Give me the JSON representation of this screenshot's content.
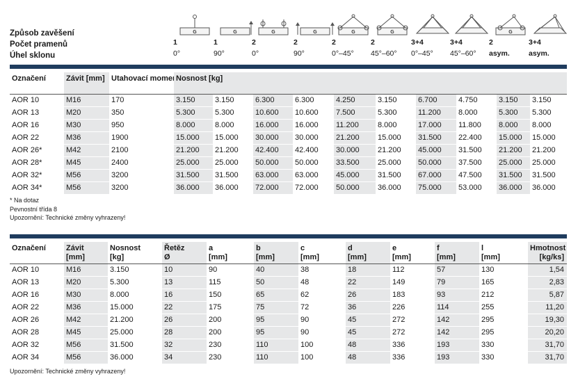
{
  "top_labels": [
    "Způsob zavěšení",
    "Počet pramenů",
    "Úhel sklonu"
  ],
  "config_columns": [
    {
      "icon": "one-hook-straight-icon",
      "count": "1",
      "angle": "0°"
    },
    {
      "icon": "one-hook-side-icon",
      "count": "1",
      "angle": "90°"
    },
    {
      "icon": "two-hooks-straight-icon",
      "count": "2",
      "angle": "0°"
    },
    {
      "icon": "two-hooks-side-icon",
      "count": "2",
      "angle": "90°"
    },
    {
      "icon": "two-legs-angled-icon",
      "count": "2",
      "angle": "0°–45°"
    },
    {
      "icon": "two-legs-wide-icon",
      "count": "2",
      "angle": "45°–60°"
    },
    {
      "icon": "four-legs-angled-icon",
      "count": "3+4",
      "angle": "0°–45°"
    },
    {
      "icon": "four-legs-wide-icon",
      "count": "3+4",
      "angle": "45°–60°"
    },
    {
      "icon": "two-legs-asym-icon",
      "count": "2",
      "angle": "asym."
    },
    {
      "icon": "four-legs-asym-icon",
      "count": "3+4",
      "angle": "asym."
    }
  ],
  "table1": {
    "headers": [
      "Označení",
      "Závit [mm]",
      "Utahovací moment [Nm]",
      "Nosnost [kg]"
    ],
    "rows": [
      [
        "AOR 10",
        "M16",
        "170",
        "3.150",
        "3.150",
        "6.300",
        "6.300",
        "4.250",
        "3.150",
        "6.700",
        "4.750",
        "3.150",
        "3.150"
      ],
      [
        "AOR 13",
        "M20",
        "350",
        "5.300",
        "5.300",
        "10.600",
        "10.600",
        "7.500",
        "5.300",
        "11.200",
        "8.000",
        "5.300",
        "5.300"
      ],
      [
        "AOR 16",
        "M30",
        "950",
        "8.000",
        "8.000",
        "16.000",
        "16.000",
        "11.200",
        "8.000",
        "17.000",
        "11.800",
        "8.000",
        "8.000"
      ],
      [
        "AOR 22",
        "M36",
        "1900",
        "15.000",
        "15.000",
        "30.000",
        "30.000",
        "21.200",
        "15.000",
        "31.500",
        "22.400",
        "15.000",
        "15.000"
      ],
      [
        "AOR 26*",
        "M42",
        "2100",
        "21.200",
        "21.200",
        "42.400",
        "42.400",
        "30.000",
        "21.200",
        "45.000",
        "31.500",
        "21.200",
        "21.200"
      ],
      [
        "AOR 28*",
        "M45",
        "2400",
        "25.000",
        "25.000",
        "50.000",
        "50.000",
        "33.500",
        "25.000",
        "50.000",
        "37.500",
        "25.000",
        "25.000"
      ],
      [
        "AOR 32*",
        "M56",
        "3200",
        "31.500",
        "31.500",
        "63.000",
        "63.000",
        "45.000",
        "31.500",
        "67.000",
        "47.500",
        "31.500",
        "31.500"
      ],
      [
        "AOR 34*",
        "M56",
        "3200",
        "36.000",
        "36.000",
        "72.000",
        "72.000",
        "50.000",
        "36.000",
        "75.000",
        "53.000",
        "36.000",
        "36.000"
      ]
    ]
  },
  "notes1": [
    "* Na dotaz",
    "Pevnostní třída 8",
    "Upozornění: Technické změny vyhrazeny!"
  ],
  "table2": {
    "headers": [
      "Označení",
      "Závit [mm]",
      "Nosnost [kg]",
      "Řetěz Ø",
      "a [mm]",
      "b [mm]",
      "c [mm]",
      "d [mm]",
      "e [mm]",
      "f [mm]",
      "l [mm]",
      "Hmotnost [kg/ks]"
    ],
    "rows": [
      [
        "AOR 10",
        "M16",
        "3.150",
        "10",
        "90",
        "40",
        "38",
        "18",
        "112",
        "57",
        "130",
        "1,54"
      ],
      [
        "AOR 13",
        "M20",
        "5.300",
        "13",
        "115",
        "50",
        "48",
        "22",
        "149",
        "79",
        "165",
        "2,83"
      ],
      [
        "AOR 16",
        "M30",
        "8.000",
        "16",
        "150",
        "65",
        "62",
        "26",
        "183",
        "93",
        "212",
        "5,87"
      ],
      [
        "AOR 22",
        "M36",
        "15.000",
        "22",
        "175",
        "75",
        "72",
        "36",
        "226",
        "114",
        "255",
        "11,20"
      ],
      [
        "AOR 26",
        "M42",
        "21.200",
        "26",
        "200",
        "95",
        "90",
        "45",
        "272",
        "142",
        "295",
        "19,30"
      ],
      [
        "AOR 28",
        "M45",
        "25.000",
        "28",
        "200",
        "95",
        "90",
        "45",
        "272",
        "142",
        "295",
        "20,20"
      ],
      [
        "AOR 32",
        "M56",
        "31.500",
        "32",
        "230",
        "110",
        "100",
        "48",
        "336",
        "193",
        "330",
        "31,70"
      ],
      [
        "AOR 34",
        "M56",
        "36.000",
        "34",
        "230",
        "110",
        "100",
        "48",
        "336",
        "193",
        "330",
        "31,70"
      ]
    ]
  },
  "notes2": [
    "Upozornění: Technické změny vyhrazeny!"
  ]
}
